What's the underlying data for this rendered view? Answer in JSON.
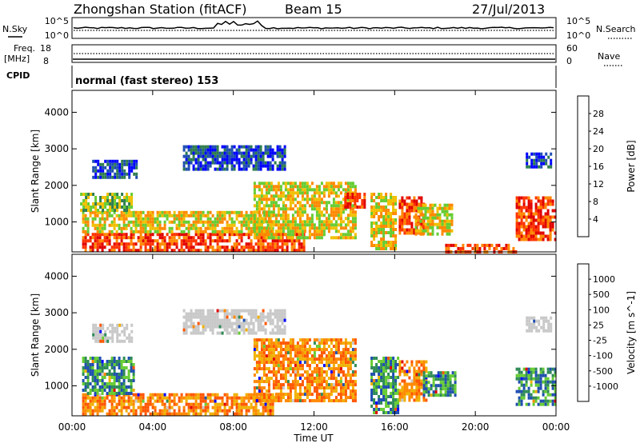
{
  "header": {
    "station": "Zhongshan Station (fitACF)",
    "beam": "Beam 15",
    "date": "27/Jul/2013"
  },
  "top_panels": {
    "nsky_label": "N.Sky",
    "nsearch_label": "N.Search",
    "noise_ticks_left": [
      "10^5",
      "10^0"
    ],
    "noise_ticks_right": [
      "10^5",
      "10^0"
    ],
    "freq_label_1": "Freq.",
    "freq_label_2": "[MHz]",
    "freq_ticks": [
      "18",
      "8"
    ],
    "nave_label": "Nave",
    "nave_ticks": [
      "60",
      "0"
    ],
    "cpid_label": "CPID",
    "cpid_text": "normal (fast stereo) 153"
  },
  "chart_data": [
    {
      "type": "heatmap",
      "title": "",
      "xlabel": "Time UT",
      "ylabel": "Slant Range [km]",
      "x_ticks": [
        "00:00",
        "04:00",
        "08:00",
        "12:00",
        "16:00",
        "20:00",
        "00:00"
      ],
      "y_ticks": [
        "1000",
        "2000",
        "3000",
        "4000"
      ],
      "xlim_hours": [
        0,
        24
      ],
      "ylim_km": [
        180,
        4600
      ],
      "colorbar": {
        "label": "Power [dB]",
        "ticks": [
          "4",
          "8",
          "12",
          "16",
          "20",
          "24",
          "28"
        ],
        "colors": [
          "#0000ff",
          "#1f4fb0",
          "#2e7d4f",
          "#66cc33",
          "#f0c000",
          "#ff8800",
          "#ff3300",
          "#e00000"
        ]
      },
      "echo_regions": [
        {
          "t0": 0.5,
          "t1": 11.5,
          "r0": 200,
          "r1": 700,
          "level": "high"
        },
        {
          "t0": 0.5,
          "t1": 10.0,
          "r0": 700,
          "r1": 1300,
          "level": "mid"
        },
        {
          "t0": 0.4,
          "t1": 3.0,
          "r0": 1300,
          "r1": 1800,
          "level": "low"
        },
        {
          "t0": 1.0,
          "t1": 3.2,
          "r0": 2200,
          "r1": 2700,
          "level": "weak"
        },
        {
          "t0": 5.5,
          "t1": 10.5,
          "r0": 2400,
          "r1": 3100,
          "level": "weak"
        },
        {
          "t0": 9.0,
          "t1": 14.0,
          "r0": 600,
          "r1": 2100,
          "level": "mid"
        },
        {
          "t0": 13.5,
          "t1": 14.5,
          "r0": 1400,
          "r1": 1800,
          "level": "high"
        },
        {
          "t0": 14.8,
          "t1": 16.0,
          "r0": 300,
          "r1": 1800,
          "level": "mid"
        },
        {
          "t0": 16.2,
          "t1": 17.4,
          "r0": 700,
          "r1": 1700,
          "level": "high"
        },
        {
          "t0": 17.0,
          "t1": 18.8,
          "r0": 700,
          "r1": 1500,
          "level": "mid"
        },
        {
          "t0": 18.5,
          "t1": 22.0,
          "r0": 200,
          "r1": 400,
          "level": "high"
        },
        {
          "t0": 22.0,
          "t1": 24.0,
          "r0": 500,
          "r1": 1700,
          "level": "high"
        },
        {
          "t0": 22.5,
          "t1": 23.8,
          "r0": 2500,
          "r1": 2900,
          "level": "weak"
        }
      ]
    },
    {
      "type": "heatmap",
      "title": "",
      "xlabel": "Time UT",
      "ylabel": "Slant Range [km]",
      "x_ticks": [
        "00:00",
        "04:00",
        "08:00",
        "12:00",
        "16:00",
        "20:00",
        "00:00"
      ],
      "y_ticks": [
        "1000",
        "2000",
        "3000",
        "4000"
      ],
      "xlim_hours": [
        0,
        24
      ],
      "ylim_km": [
        180,
        4600
      ],
      "colorbar": {
        "label": "Velocity [m s^-1]",
        "ticks": [
          "-1000",
          "-500",
          "-100",
          "-25",
          "25",
          "100",
          "500",
          "1000"
        ],
        "colors": [
          "#e00000",
          "#ff5500",
          "#ff8800",
          "#f0b000",
          "#c8c8c8",
          "#66cc33",
          "#2e8b57",
          "#1f4fb0",
          "#0000ff"
        ]
      },
      "echo_regions": [
        {
          "t0": 0.5,
          "t1": 10.0,
          "r0": 200,
          "r1": 800,
          "level": "orange"
        },
        {
          "t0": 0.5,
          "t1": 3.0,
          "r0": 800,
          "r1": 1800,
          "level": "green"
        },
        {
          "t0": 1.0,
          "t1": 3.0,
          "r0": 2200,
          "r1": 2700,
          "level": "grey"
        },
        {
          "t0": 5.5,
          "t1": 10.5,
          "r0": 2400,
          "r1": 3100,
          "level": "grey"
        },
        {
          "t0": 9.0,
          "t1": 14.0,
          "r0": 600,
          "r1": 2300,
          "level": "orange"
        },
        {
          "t0": 14.8,
          "t1": 16.2,
          "r0": 300,
          "r1": 1800,
          "level": "green"
        },
        {
          "t0": 16.2,
          "t1": 17.6,
          "r0": 600,
          "r1": 1700,
          "level": "orange"
        },
        {
          "t0": 17.4,
          "t1": 19.0,
          "r0": 700,
          "r1": 1400,
          "level": "green"
        },
        {
          "t0": 22.0,
          "t1": 24.0,
          "r0": 500,
          "r1": 1500,
          "level": "green"
        },
        {
          "t0": 22.5,
          "t1": 23.8,
          "r0": 2500,
          "r1": 2900,
          "level": "grey"
        }
      ]
    }
  ]
}
